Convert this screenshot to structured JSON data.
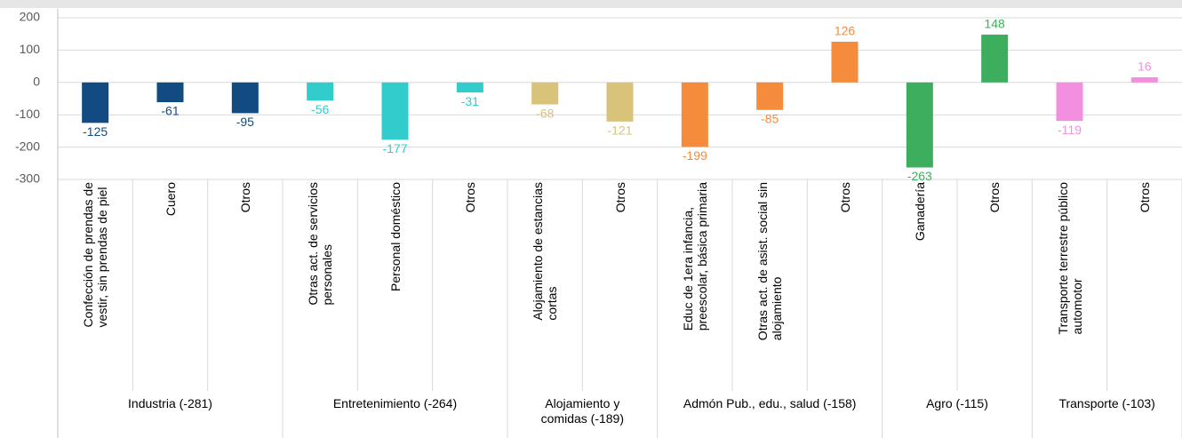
{
  "chart_data": {
    "type": "bar",
    "ylim": [
      -300,
      200
    ],
    "yticks": [
      -300,
      -200,
      -100,
      0,
      100,
      200
    ],
    "grid": true,
    "groups": [
      {
        "name": "Industria (-281)",
        "color": "#124b82",
        "categories": [
          "Confección de prendas de\nvestir, sin prendas de piel",
          "Cuero",
          "Otros"
        ],
        "values": [
          -125,
          -61,
          -95
        ]
      },
      {
        "name": "Entretenimiento (-264)",
        "color": "#33cccc",
        "categories": [
          "Otras act. de servicios\npersonales",
          "Personal doméstico",
          "Otros"
        ],
        "values": [
          -56,
          -177,
          -31
        ]
      },
      {
        "name": "Alojamiento y\ncomidas (-189)",
        "color": "#d9c27a",
        "categories": [
          "Alojamiento de estancias\ncortas",
          "Otros"
        ],
        "values": [
          -68,
          -121
        ]
      },
      {
        "name": "Admón Pub., edu., salud (-158)",
        "color": "#f58b3c",
        "categories": [
          "Educ de 1era infancia,\npreescolar, básica primaria",
          "Otras act. de asist. social sin\nalojamiento",
          "Otros"
        ],
        "values": [
          -199,
          -85,
          126
        ]
      },
      {
        "name": "Agro (-115)",
        "color": "#3dae5e",
        "categories": [
          "Ganadería",
          "Otros"
        ],
        "values": [
          -263,
          148
        ]
      },
      {
        "name": "Transporte (-103)",
        "color": "#f48fe0",
        "categories": [
          "Transporte terrestre público\nautomotor",
          "Otros"
        ],
        "values": [
          -119,
          16
        ]
      }
    ]
  }
}
